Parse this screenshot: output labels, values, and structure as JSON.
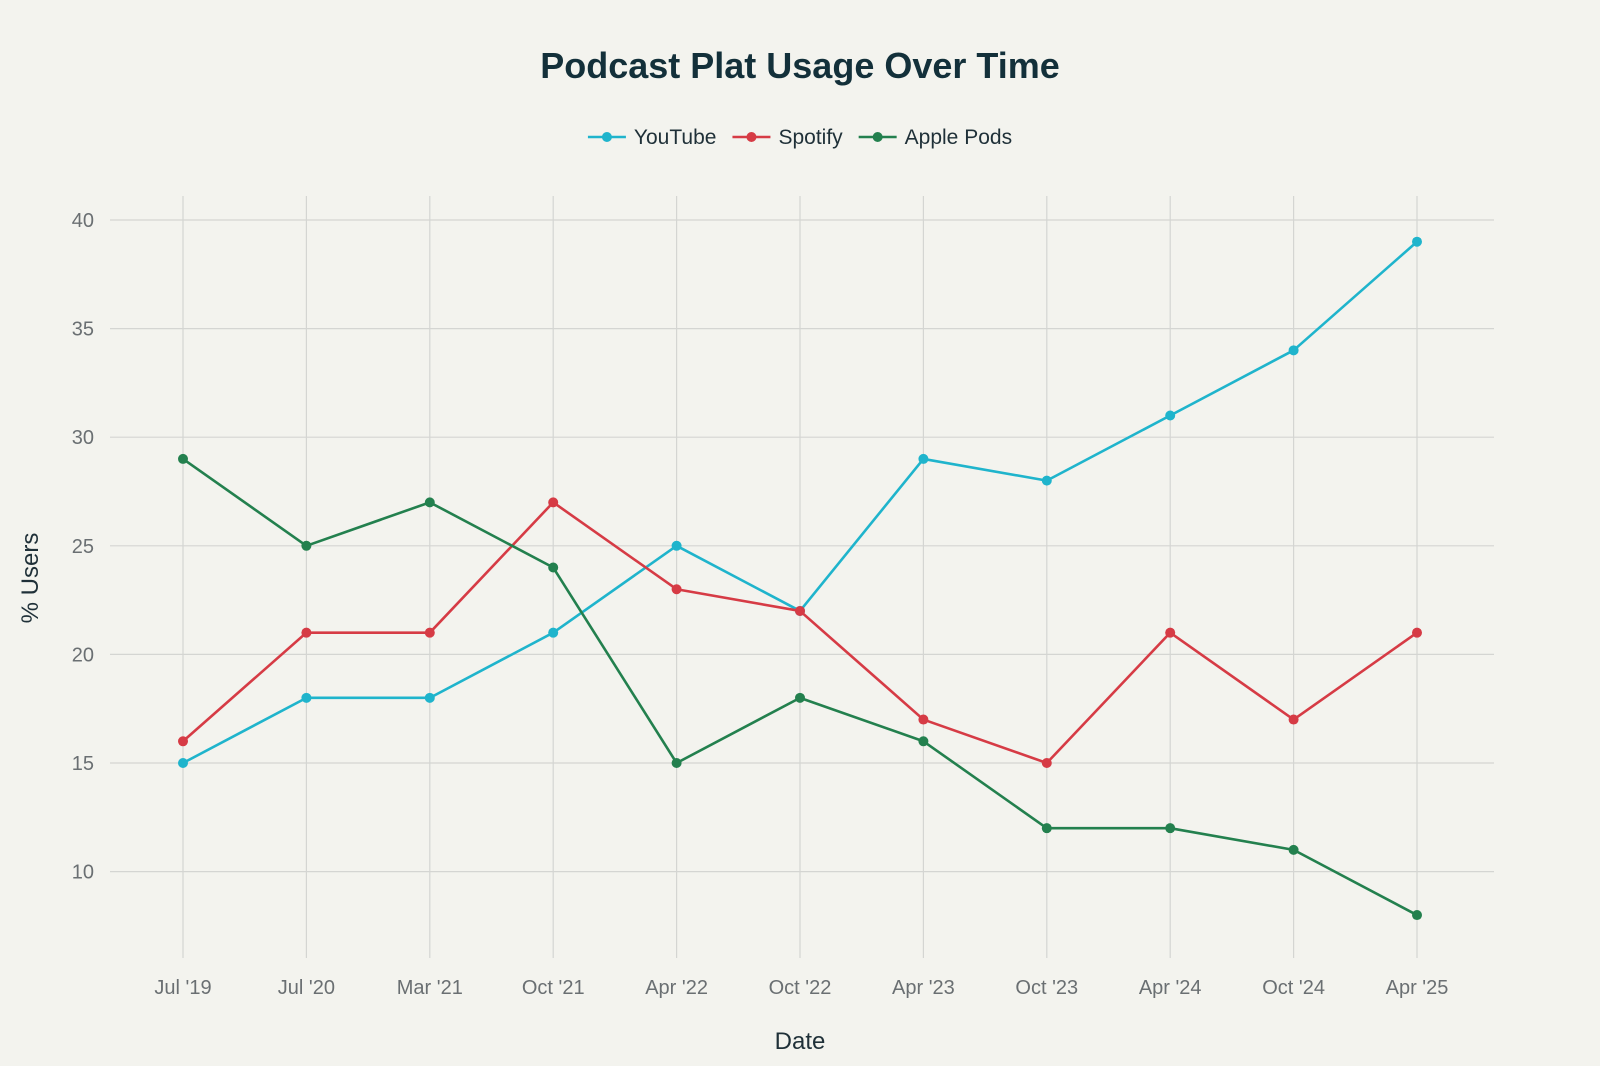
{
  "chart_data": {
    "type": "line",
    "title": "Podcast Plat Usage Over Time",
    "xlabel": "Date",
    "ylabel": "% Users",
    "categories": [
      "Jul '19",
      "Jul '20",
      "Mar '21",
      "Oct '21",
      "Apr '22",
      "Oct '22",
      "Apr '23",
      "Oct '23",
      "Apr '24",
      "Oct '24",
      "Apr '25"
    ],
    "y_ticks": [
      10,
      15,
      20,
      25,
      30,
      35,
      40
    ],
    "ylim": [
      6,
      41
    ],
    "grid": true,
    "legend_position": "top-center",
    "series": [
      {
        "name": "YouTube",
        "color": "#1fb4cc",
        "values": [
          15,
          18,
          18,
          21,
          25,
          22,
          29,
          28,
          31,
          34,
          39
        ]
      },
      {
        "name": "Spotify",
        "color": "#d63b45",
        "values": [
          16,
          21,
          21,
          27,
          23,
          22,
          17,
          15,
          21,
          17,
          21
        ]
      },
      {
        "name": "Apple Pods",
        "color": "#23804e",
        "values": [
          29,
          25,
          27,
          24,
          15,
          18,
          16,
          12,
          12,
          11,
          8
        ]
      }
    ]
  }
}
